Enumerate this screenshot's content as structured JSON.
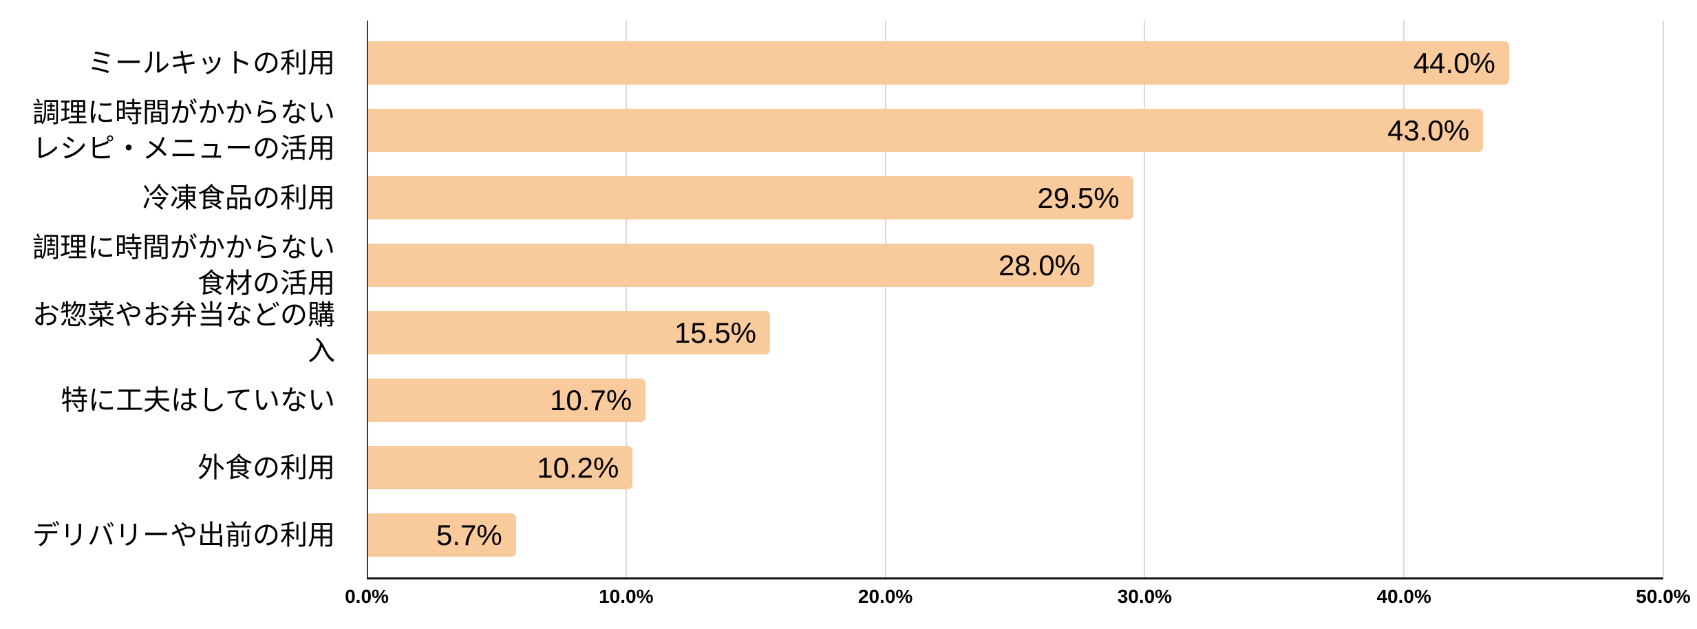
{
  "chart_data": {
    "type": "bar",
    "orientation": "horizontal",
    "title": "",
    "categories": [
      "ミールキットの利用",
      "調理に時間がかからないレシピ・メニューの活用",
      "冷凍食品の利用",
      "調理に時間がかからない食材の活用",
      "お惣菜やお弁当などの購入",
      "特に工夫はしていない",
      "外食の利用",
      "デリバリーや出前の利用"
    ],
    "category_lines": [
      [
        "ミールキットの利用"
      ],
      [
        "調理に時間がかからない",
        "レシピ・メニューの活用"
      ],
      [
        "冷凍食品の利用"
      ],
      [
        "調理に時間がかからない",
        "食材の活用"
      ],
      [
        "お惣菜やお弁当などの購",
        "入"
      ],
      [
        "特に工夫はしていない"
      ],
      [
        "外食の利用"
      ],
      [
        "デリバリーや出前の利用"
      ]
    ],
    "values": [
      44.0,
      43.0,
      29.5,
      28.0,
      15.5,
      10.7,
      10.2,
      5.7
    ],
    "value_labels": [
      "44.0%",
      "43.0%",
      "29.5%",
      "28.0%",
      "15.5%",
      "10.7%",
      "10.2%",
      "5.7%"
    ],
    "xlabel": "",
    "ylabel": "",
    "xlim": [
      0,
      50
    ],
    "x_ticks": [
      0,
      10,
      20,
      30,
      40,
      50
    ],
    "x_tick_labels": [
      "0.0%",
      "10.0%",
      "20.0%",
      "30.0%",
      "40.0%",
      "50.0%"
    ],
    "grid": "vertical-only",
    "legend": "none",
    "colors": {
      "bar_fill": "#f9ca9c",
      "gridline": "#d9d9d9",
      "y_axis_line": "#3c3c3c",
      "x_axis_line": "#141414",
      "text": "#000000",
      "background": "#ffffff"
    }
  }
}
